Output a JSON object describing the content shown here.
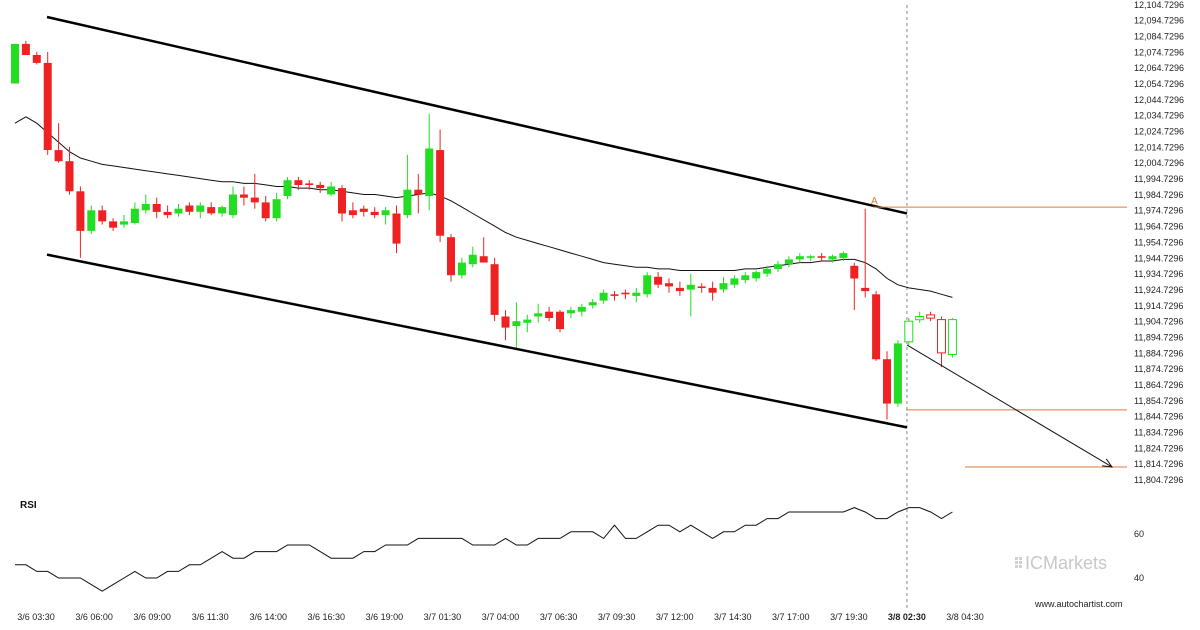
{
  "chart_data": {
    "type": "candlestick",
    "price_axis": {
      "range": [
        11799.7296,
        12107.7296
      ],
      "ticks": [
        "12,104.7296",
        "12,094.7296",
        "12,084.7296",
        "12,074.7296",
        "12,064.7296",
        "12,054.7296",
        "12,044.7296",
        "12,034.7296",
        "12,024.7296",
        "12,014.7296",
        "12,004.7296",
        "11,994.7296",
        "11,984.7296",
        "11,974.7296",
        "11,964.7296",
        "11,954.7296",
        "11,944.7296",
        "11,934.7296",
        "11,924.7296",
        "11,914.7296",
        "11,904.7296",
        "11,894.7296",
        "11,884.7296",
        "11,874.7296",
        "11,864.7296",
        "11,854.7296",
        "11,844.7296",
        "11,834.7296",
        "11,824.7296",
        "11,814.7296",
        "11,804.7296"
      ]
    },
    "time_axis": {
      "ticks": [
        "3/6 03:30",
        "3/6 06:00",
        "3/6 09:00",
        "3/6 11:30",
        "3/6 14:00",
        "3/6 16:30",
        "3/6 19:00",
        "3/7 01:30",
        "3/7 04:00",
        "3/7 06:30",
        "3/7 09:30",
        "3/7 12:00",
        "3/7 14:30",
        "3/7 17:00",
        "3/7 19:30",
        "3/8 02:30",
        "3/8 04:30"
      ],
      "highlighted": "3/8 02:30"
    },
    "colors": {
      "up": "#22dd22",
      "down": "#ee2222",
      "channel": "#000000",
      "ma": "#111111",
      "levels": "#e07a3a",
      "rsi": "#111111"
    },
    "candles": [
      {
        "o": 12055,
        "h": 12080,
        "l": 12055,
        "c": 12080
      },
      {
        "o": 12080,
        "h": 12082,
        "l": 12073,
        "c": 12073
      },
      {
        "o": 12073,
        "h": 12075,
        "l": 12067,
        "c": 12068
      },
      {
        "o": 12068,
        "h": 12075,
        "l": 12010,
        "c": 12013
      },
      {
        "o": 12013,
        "h": 12030,
        "l": 12005,
        "c": 12006
      },
      {
        "o": 12006,
        "h": 12015,
        "l": 11985,
        "c": 11987
      },
      {
        "o": 11987,
        "h": 11990,
        "l": 11945,
        "c": 11962
      },
      {
        "o": 11962,
        "h": 11978,
        "l": 11960,
        "c": 11975
      },
      {
        "o": 11975,
        "h": 11978,
        "l": 11966,
        "c": 11968
      },
      {
        "o": 11968,
        "h": 11970,
        "l": 11962,
        "c": 11964
      },
      {
        "o": 11966,
        "h": 11972,
        "l": 11964,
        "c": 11968
      },
      {
        "o": 11967,
        "h": 11980,
        "l": 11966,
        "c": 11976
      },
      {
        "o": 11975,
        "h": 11985,
        "l": 11973,
        "c": 11979
      },
      {
        "o": 11979,
        "h": 11983,
        "l": 11970,
        "c": 11974
      },
      {
        "o": 11974,
        "h": 11978,
        "l": 11970,
        "c": 11972
      },
      {
        "o": 11973,
        "h": 11979,
        "l": 11971,
        "c": 11976
      },
      {
        "o": 11978,
        "h": 11980,
        "l": 11972,
        "c": 11974
      },
      {
        "o": 11974,
        "h": 11980,
        "l": 11970,
        "c": 11978
      },
      {
        "o": 11977,
        "h": 11980,
        "l": 11972,
        "c": 11973
      },
      {
        "o": 11973,
        "h": 11978,
        "l": 11971,
        "c": 11977
      },
      {
        "o": 11972,
        "h": 11990,
        "l": 11970,
        "c": 11985
      },
      {
        "o": 11985,
        "h": 11990,
        "l": 11978,
        "c": 11983
      },
      {
        "o": 11983,
        "h": 11998,
        "l": 11976,
        "c": 11980
      },
      {
        "o": 11980,
        "h": 11984,
        "l": 11968,
        "c": 11970
      },
      {
        "o": 11970,
        "h": 11986,
        "l": 11968,
        "c": 11982
      },
      {
        "o": 11984,
        "h": 11996,
        "l": 11982,
        "c": 11994
      },
      {
        "o": 11994,
        "h": 11996,
        "l": 11988,
        "c": 11991
      },
      {
        "o": 11992,
        "h": 11994,
        "l": 11988,
        "c": 11991
      },
      {
        "o": 11991,
        "h": 11993,
        "l": 11986,
        "c": 11989
      },
      {
        "o": 11985,
        "h": 11993,
        "l": 11984,
        "c": 11990
      },
      {
        "o": 11989,
        "h": 11991,
        "l": 11968,
        "c": 11973
      },
      {
        "o": 11975,
        "h": 11980,
        "l": 11970,
        "c": 11972
      },
      {
        "o": 11976,
        "h": 11978,
        "l": 11971,
        "c": 11974
      },
      {
        "o": 11974,
        "h": 11977,
        "l": 11970,
        "c": 11972
      },
      {
        "o": 11972,
        "h": 11977,
        "l": 11966,
        "c": 11975
      },
      {
        "o": 11973,
        "h": 11978,
        "l": 11948,
        "c": 11954
      },
      {
        "o": 11972,
        "h": 12010,
        "l": 11970,
        "c": 11988
      },
      {
        "o": 11988,
        "h": 11998,
        "l": 11973,
        "c": 11985
      },
      {
        "o": 11984,
        "h": 12036,
        "l": 11975,
        "c": 12014
      },
      {
        "o": 12013,
        "h": 12026,
        "l": 11955,
        "c": 11959
      },
      {
        "o": 11958,
        "h": 11960,
        "l": 11930,
        "c": 11934
      },
      {
        "o": 11934,
        "h": 11945,
        "l": 11932,
        "c": 11942
      },
      {
        "o": 11941,
        "h": 11952,
        "l": 11939,
        "c": 11947
      },
      {
        "o": 11946,
        "h": 11958,
        "l": 11944,
        "c": 11942
      },
      {
        "o": 11941,
        "h": 11945,
        "l": 11905,
        "c": 11909
      },
      {
        "o": 11908,
        "h": 11912,
        "l": 11893,
        "c": 11901
      },
      {
        "o": 11902,
        "h": 11917,
        "l": 11888,
        "c": 11905
      },
      {
        "o": 11904,
        "h": 11909,
        "l": 11898,
        "c": 11906
      },
      {
        "o": 11908,
        "h": 11916,
        "l": 11904,
        "c": 11910
      },
      {
        "o": 11911,
        "h": 11914,
        "l": 11905,
        "c": 11907
      },
      {
        "o": 11911,
        "h": 11912,
        "l": 11898,
        "c": 11900
      },
      {
        "o": 11910,
        "h": 11914,
        "l": 11907,
        "c": 11912
      },
      {
        "o": 11911,
        "h": 11916,
        "l": 11908,
        "c": 11914
      },
      {
        "o": 11915,
        "h": 11919,
        "l": 11913,
        "c": 11917
      },
      {
        "o": 11918,
        "h": 11925,
        "l": 11916,
        "c": 11923
      },
      {
        "o": 11922,
        "h": 11924,
        "l": 11918,
        "c": 11921
      },
      {
        "o": 11923,
        "h": 11925,
        "l": 11919,
        "c": 11922
      },
      {
        "o": 11921,
        "h": 11926,
        "l": 11917,
        "c": 11923
      },
      {
        "o": 11922,
        "h": 11936,
        "l": 11920,
        "c": 11934
      },
      {
        "o": 11933,
        "h": 11936,
        "l": 11926,
        "c": 11928
      },
      {
        "o": 11929,
        "h": 11932,
        "l": 11923,
        "c": 11927
      },
      {
        "o": 11926,
        "h": 11930,
        "l": 11921,
        "c": 11924
      },
      {
        "o": 11925,
        "h": 11935,
        "l": 11908,
        "c": 11928
      },
      {
        "o": 11927,
        "h": 11929,
        "l": 11923,
        "c": 11926
      },
      {
        "o": 11926,
        "h": 11930,
        "l": 11918,
        "c": 11923
      },
      {
        "o": 11925,
        "h": 11933,
        "l": 11923,
        "c": 11929
      },
      {
        "o": 11928,
        "h": 11934,
        "l": 11926,
        "c": 11932
      },
      {
        "o": 11931,
        "h": 11936,
        "l": 11929,
        "c": 11934
      },
      {
        "o": 11932,
        "h": 11937,
        "l": 11930,
        "c": 11936
      },
      {
        "o": 11935,
        "h": 11940,
        "l": 11933,
        "c": 11938
      },
      {
        "o": 11938,
        "h": 11943,
        "l": 11936,
        "c": 11941
      },
      {
        "o": 11941,
        "h": 11946,
        "l": 11939,
        "c": 11944
      },
      {
        "o": 11944,
        "h": 11948,
        "l": 11942,
        "c": 11946
      },
      {
        "o": 11945,
        "h": 11947,
        "l": 11943,
        "c": 11946
      },
      {
        "o": 11946,
        "h": 11948,
        "l": 11943,
        "c": 11945
      },
      {
        "o": 11944,
        "h": 11947,
        "l": 11942,
        "c": 11946
      },
      {
        "o": 11945,
        "h": 11949,
        "l": 11943,
        "c": 11948
      },
      {
        "o": 11940,
        "h": 11942,
        "l": 11912,
        "c": 11932
      },
      {
        "o": 11926,
        "h": 11976,
        "l": 11920,
        "c": 11924
      },
      {
        "o": 11922,
        "h": 11924,
        "l": 11880,
        "c": 11881
      },
      {
        "o": 11881,
        "h": 11886,
        "l": 11843,
        "c": 11853
      },
      {
        "o": 11853,
        "h": 11893,
        "l": 11851,
        "c": 11891
      },
      {
        "o": 11892,
        "h": 11907,
        "l": 11890,
        "c": 11905
      },
      {
        "o": 11906,
        "h": 11911,
        "l": 11904,
        "c": 11908
      },
      {
        "o": 11909,
        "h": 11911,
        "l": 11905,
        "c": 11907
      },
      {
        "o": 11906,
        "h": 11908,
        "l": 11876,
        "c": 11885
      },
      {
        "o": 11884,
        "h": 11907,
        "l": 11882,
        "c": 11906
      }
    ],
    "moving_average": [
      12030,
      12034,
      12030,
      12024,
      12018,
      12012,
      12008,
      12006,
      12004,
      12003,
      12002,
      12001,
      12000,
      11999,
      11998,
      11997,
      11996,
      11995,
      11994,
      11993,
      11993,
      11992,
      11992,
      11991,
      11990,
      11990,
      11989,
      11989,
      11988,
      11988,
      11987,
      11986,
      11985,
      11985,
      11984,
      11983,
      11984,
      11985,
      11986,
      11984,
      11981,
      11977,
      11973,
      11969,
      11965,
      11961,
      11958,
      11956,
      11954,
      11952,
      11950,
      11948,
      11946,
      11944,
      11942,
      11941,
      11940,
      11939,
      11939,
      11938,
      11938,
      11937,
      11937,
      11937,
      11937,
      11937,
      11937,
      11938,
      11938,
      11939,
      11940,
      11941,
      11942,
      11942,
      11943,
      11943,
      11944,
      11944,
      11942,
      11938,
      11932,
      11928,
      11926,
      11925,
      11924,
      11922,
      11920
    ],
    "channel": {
      "upper": [
        {
          "time": "3/6 03:30",
          "price": 12097
        },
        {
          "time": "3/8 02:30",
          "price": 11973
        }
      ],
      "lower": [
        {
          "time": "3/6 03:30",
          "price": 11947
        },
        {
          "time": "3/8 02:30",
          "price": 11838
        }
      ]
    },
    "forecast_arrow": {
      "from_price": 11890,
      "to_price": 11813
    },
    "levels": [
      11977,
      11849,
      11813
    ],
    "point_label": "A",
    "rsi": {
      "title": "RSI",
      "ticks": [
        "60",
        "40"
      ],
      "range": [
        30,
        80
      ],
      "values": [
        46,
        46,
        43,
        43,
        40,
        40,
        40,
        37,
        34,
        37,
        40,
        43,
        40,
        40,
        43,
        43,
        46,
        46,
        49,
        52,
        49,
        49,
        52,
        52,
        52,
        55,
        55,
        55,
        52,
        49,
        49,
        49,
        52,
        52,
        55,
        55,
        55,
        58,
        58,
        58,
        58,
        58,
        55,
        55,
        55,
        58,
        55,
        55,
        58,
        58,
        58,
        61,
        61,
        61,
        58,
        64,
        58,
        58,
        61,
        64,
        64,
        61,
        64,
        61,
        58,
        61,
        61,
        64,
        64,
        67,
        67,
        70,
        70,
        70,
        70,
        70,
        70,
        72,
        70,
        67,
        67,
        70,
        72,
        72,
        70,
        67,
        70
      ]
    }
  },
  "branding": {
    "logo_text": "ICMarkets",
    "website": "www.autochartist.com"
  }
}
